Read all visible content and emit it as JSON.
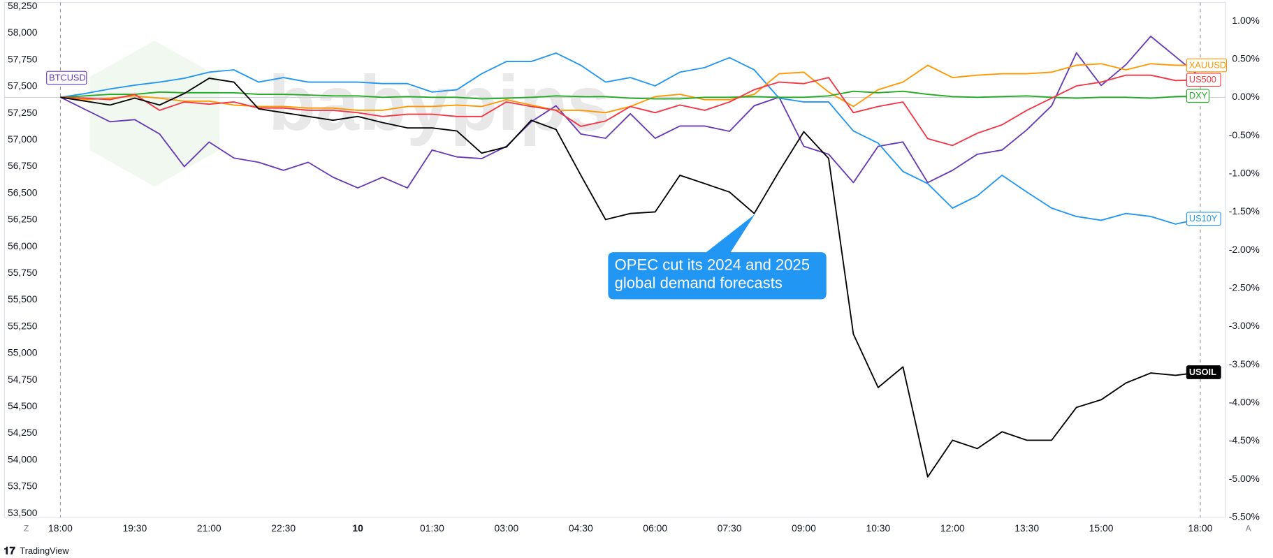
{
  "chart_data": {
    "type": "line",
    "x": [
      0,
      0.5,
      1,
      1.5,
      2,
      2.5,
      3,
      3.5,
      4,
      4.5,
      5,
      5.5,
      6,
      6.5,
      7,
      7.5,
      8,
      8.5,
      9,
      9.5,
      10,
      10.5,
      11,
      11.5,
      12,
      12.5,
      13,
      13.5,
      14,
      14.5,
      15,
      15.5,
      16,
      16.5,
      17,
      17.5,
      18,
      18.5,
      19,
      19.5,
      20,
      20.5,
      21,
      21.5,
      22,
      22.5,
      23
    ],
    "xlim": [
      -1.13,
      23.51
    ],
    "xticks": [
      {
        "value": 0,
        "label": "18:00"
      },
      {
        "value": 1.5,
        "label": "19:30"
      },
      {
        "value": 3,
        "label": "21:00"
      },
      {
        "value": 4.5,
        "label": "22:30"
      },
      {
        "value": 6,
        "label": "10"
      },
      {
        "value": 7.5,
        "label": "01:30"
      },
      {
        "value": 9,
        "label": "03:00"
      },
      {
        "value": 10.5,
        "label": "04:30"
      },
      {
        "value": 12,
        "label": "06:00"
      },
      {
        "value": 13.5,
        "label": "07:30"
      },
      {
        "value": 15,
        "label": "09:00"
      },
      {
        "value": 16.5,
        "label": "10:30"
      },
      {
        "value": 18,
        "label": "12:00"
      },
      {
        "value": 19.5,
        "label": "13:30"
      },
      {
        "value": 21,
        "label": "15:00"
      },
      {
        "value": 23,
        "label": "18:00"
      }
    ],
    "ylim": [
      53500,
      58250
    ],
    "yticks": [
      {
        "value": 53500,
        "label": "53,500"
      },
      {
        "value": 53750,
        "label": "53,750"
      },
      {
        "value": 54000,
        "label": "54,000"
      },
      {
        "value": 54250,
        "label": "54,250"
      },
      {
        "value": 54500,
        "label": "54,500"
      },
      {
        "value": 54750,
        "label": "54,750"
      },
      {
        "value": 55000,
        "label": "55,000"
      },
      {
        "value": 55250,
        "label": "55,250"
      },
      {
        "value": 55500,
        "label": "55,500"
      },
      {
        "value": 55750,
        "label": "55,750"
      },
      {
        "value": 56000,
        "label": "56,000"
      },
      {
        "value": 56250,
        "label": "56,250"
      },
      {
        "value": 56500,
        "label": "56,500"
      },
      {
        "value": 56750,
        "label": "56,750"
      },
      {
        "value": 57000,
        "label": "57,000"
      },
      {
        "value": 57250,
        "label": "57,250"
      },
      {
        "value": 57500,
        "label": "57,500"
      },
      {
        "value": 57750,
        "label": "57,750"
      },
      {
        "value": 58000,
        "label": "58,000"
      },
      {
        "value": 58250,
        "label": "58,250"
      }
    ],
    "y2lim": [
      -5.48,
      1.19
    ],
    "y2ticks": [
      {
        "value": 1,
        "label": "1.00%"
      },
      {
        "value": 0.5,
        "label": "0.50%"
      },
      {
        "value": 0,
        "label": "0.00%"
      },
      {
        "value": -0.5,
        "label": "-0.50%"
      },
      {
        "value": -1,
        "label": "-1.00%"
      },
      {
        "value": -1.5,
        "label": "-1.50%"
      },
      {
        "value": -2,
        "label": "-2.00%"
      },
      {
        "value": -2.5,
        "label": "-2.50%"
      },
      {
        "value": -3,
        "label": "-3.00%"
      },
      {
        "value": -3.5,
        "label": "-3.50%"
      },
      {
        "value": -4,
        "label": "-4.00%"
      },
      {
        "value": -4.5,
        "label": "-4.50%"
      },
      {
        "value": -5,
        "label": "-5.00%"
      },
      {
        "value": -5.5,
        "label": "-5.50%"
      }
    ],
    "series": [
      {
        "name": "BTCUSD",
        "color": "#673ab7",
        "values": [
          57400,
          57285,
          57170,
          57190,
          57055,
          56750,
          56980,
          56830,
          56790,
          56715,
          56790,
          56650,
          56550,
          56650,
          56550,
          56905,
          56840,
          56825,
          56940,
          57170,
          57320,
          57055,
          57015,
          57245,
          57015,
          57130,
          57130,
          57080,
          57320,
          57400,
          56940,
          56865,
          56600,
          56940,
          56980,
          56600,
          56715,
          56865,
          56905,
          57095,
          57320,
          57815,
          57510,
          57705,
          57970,
          57780,
          57590
        ]
      },
      {
        "name": "US10Y",
        "color": "#2196f3",
        "axis": "y2",
        "values": [
          0,
          0.05,
          0.11,
          0.16,
          0.2,
          0.25,
          0.33,
          0.36,
          0.2,
          0.26,
          0.2,
          0.2,
          0.2,
          0.18,
          0.18,
          0.07,
          0.1,
          0.31,
          0.47,
          0.47,
          0.58,
          0.42,
          0.2,
          0.26,
          0.15,
          0.33,
          0.39,
          0.52,
          0.36,
          -0.01,
          -0.06,
          -0.06,
          -0.44,
          -0.6,
          -0.97,
          -1.13,
          -1.45,
          -1.29,
          -1.02,
          -1.24,
          -1.45,
          -1.56,
          -1.61,
          -1.52,
          -1.56,
          -1.66,
          -1.59
        ]
      },
      {
        "name": "XAUUSD",
        "color": "#ff9800",
        "axis": "y2",
        "values": [
          0,
          -0.03,
          -0.01,
          0.02,
          -0.01,
          -0.05,
          -0.05,
          -0.1,
          -0.12,
          -0.12,
          -0.14,
          -0.14,
          -0.17,
          -0.17,
          -0.12,
          -0.12,
          -0.1,
          -0.12,
          -0.03,
          -0.1,
          -0.17,
          -0.17,
          -0.2,
          -0.12,
          0.01,
          0.04,
          -0.03,
          -0.03,
          0.04,
          0.31,
          0.33,
          0.07,
          -0.12,
          0.1,
          0.2,
          0.42,
          0.26,
          0.29,
          0.31,
          0.31,
          0.33,
          0.42,
          0.44,
          0.36,
          0.44,
          0.42,
          0.42
        ]
      },
      {
        "name": "DXY",
        "color": "#22ab22",
        "axis": "y2",
        "values": [
          0,
          0.02,
          0.04,
          0.04,
          0.07,
          0.06,
          0.06,
          0.06,
          0.04,
          0.04,
          0.03,
          0.02,
          0.02,
          0,
          0.01,
          0,
          0,
          -0.02,
          -0.01,
          0,
          0.02,
          0.01,
          0.01,
          -0.01,
          -0.02,
          -0.02,
          0,
          0,
          0.01,
          0,
          0,
          0.02,
          0.08,
          0.06,
          0.08,
          0.04,
          0.01,
          0,
          0.01,
          0.02,
          0,
          -0.01,
          0,
          0,
          -0.01,
          0.01,
          0.02
        ]
      },
      {
        "name": "US500",
        "color": "#f23645",
        "axis": "y2",
        "values": [
          0,
          -0.01,
          -0.03,
          0.04,
          -0.17,
          -0.06,
          -0.09,
          -0.06,
          -0.14,
          -0.14,
          -0.17,
          -0.17,
          -0.2,
          -0.25,
          -0.22,
          -0.22,
          -0.25,
          -0.25,
          -0.06,
          -0.12,
          -0.17,
          -0.38,
          -0.31,
          -0.12,
          -0.2,
          -0.1,
          -0.17,
          -0.06,
          0.1,
          0.2,
          0.18,
          0.26,
          -0.2,
          -0.12,
          -0.06,
          -0.54,
          -0.63,
          -0.47,
          -0.36,
          -0.17,
          -0.01,
          0.15,
          0.2,
          0.29,
          0.29,
          0.22,
          0.23
        ]
      },
      {
        "name": "USOIL",
        "color": "#000000",
        "axis": "y2",
        "values": [
          0,
          -0.05,
          -0.1,
          -0.01,
          -0.1,
          0.05,
          0.25,
          0.2,
          -0.15,
          -0.2,
          -0.25,
          -0.3,
          -0.25,
          -0.33,
          -0.4,
          -0.4,
          -0.44,
          -0.73,
          -0.65,
          -0.3,
          -0.42,
          -1.02,
          -1.6,
          -1.52,
          -1.5,
          -1.02,
          -1.13,
          -1.24,
          -1.52,
          -0.97,
          -0.45,
          -0.8,
          -3.1,
          -3.8,
          -3.53,
          -4.97,
          -4.49,
          -4.6,
          -4.38,
          -4.49,
          -4.49,
          -4.06,
          -3.96,
          -3.74,
          -3.61,
          -3.64,
          -3.6
        ]
      }
    ],
    "annotation": [
      "OPEC cut its 2024 and 2025",
      "global demand forecasts"
    ],
    "grid": false
  },
  "branding": {
    "footer": "TradingView",
    "watermark": "babypips",
    "corner_left": "Z",
    "corner_right": "A"
  }
}
